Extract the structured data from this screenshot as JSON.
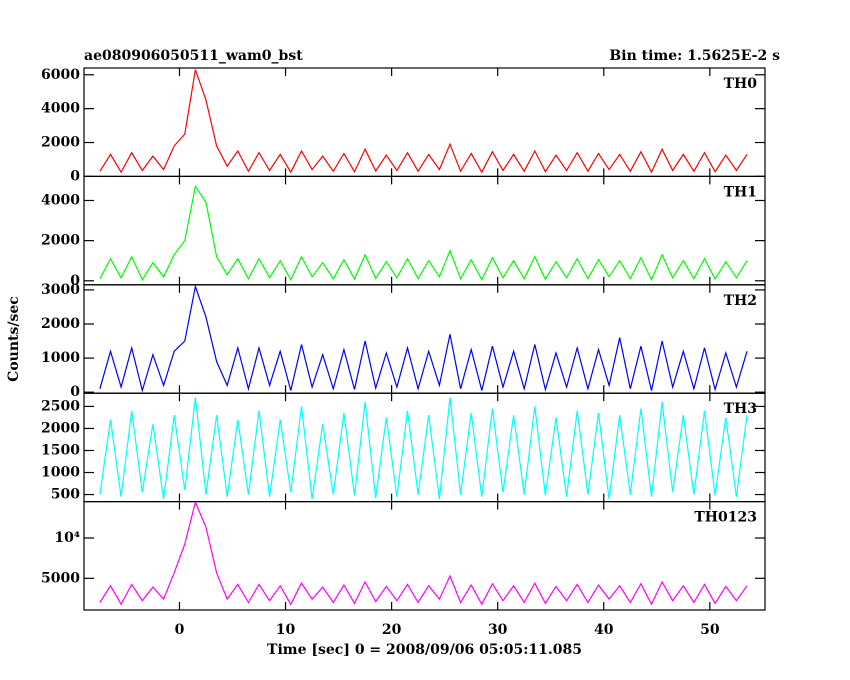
{
  "chart_data": [
    {
      "type": "line",
      "title": "ae080906050511_wam0_bst",
      "subtitle": "Bin time: 1.5625E-2 s",
      "name": "TH0",
      "color": "#ff0000",
      "x": [
        -7.5,
        -6.5,
        -5.5,
        -4.5,
        -3.5,
        -2.5,
        -1.5,
        -0.5,
        0.5,
        1.5,
        2.5,
        3.5,
        4.5,
        5.5,
        6.5,
        7.5,
        8.5,
        9.5,
        10.5,
        11.5,
        12.5,
        13.5,
        14.5,
        15.5,
        16.5,
        17.5,
        18.5,
        19.5,
        20.5,
        21.5,
        22.5,
        23.5,
        24.5,
        25.5,
        26.5,
        27.5,
        28.5,
        29.5,
        30.5,
        31.5,
        32.5,
        33.5,
        34.5,
        35.5,
        36.5,
        37.5,
        38.5,
        39.5,
        40.5,
        41.5,
        42.5,
        43.5,
        44.5,
        45.5,
        46.5,
        47.5,
        48.5,
        49.5,
        50.5,
        51.5,
        52.5,
        53.5
      ],
      "values": [
        300,
        1300,
        250,
        1400,
        350,
        1200,
        400,
        1800,
        2500,
        6300,
        4500,
        1800,
        600,
        1500,
        300,
        1400,
        350,
        1300,
        250,
        1500,
        400,
        1200,
        300,
        1350,
        280,
        1600,
        320,
        1250,
        350,
        1400,
        300,
        1300,
        400,
        1900,
        300,
        1350,
        250,
        1450,
        350,
        1300,
        300,
        1500,
        280,
        1250,
        350,
        1400,
        300,
        1350,
        400,
        1300,
        300,
        1450,
        250,
        1600,
        350,
        1300,
        300,
        1400,
        280,
        1250,
        350,
        1300
      ],
      "xlim": [
        -9,
        55.2
      ],
      "ylim": [
        0,
        6400
      ],
      "yticks": [
        0,
        2000,
        4000,
        6000
      ]
    },
    {
      "type": "line",
      "name": "TH1",
      "color": "#00ff00",
      "x": [
        -7.5,
        -6.5,
        -5.5,
        -4.5,
        -3.5,
        -2.5,
        -1.5,
        -0.5,
        0.5,
        1.5,
        2.5,
        3.5,
        4.5,
        5.5,
        6.5,
        7.5,
        8.5,
        9.5,
        10.5,
        11.5,
        12.5,
        13.5,
        14.5,
        15.5,
        16.5,
        17.5,
        18.5,
        19.5,
        20.5,
        21.5,
        22.5,
        23.5,
        24.5,
        25.5,
        26.5,
        27.5,
        28.5,
        29.5,
        30.5,
        31.5,
        32.5,
        33.5,
        34.5,
        35.5,
        36.5,
        37.5,
        38.5,
        39.5,
        40.5,
        41.5,
        42.5,
        43.5,
        44.5,
        45.5,
        46.5,
        47.5,
        48.5,
        49.5,
        50.5,
        51.5,
        52.5,
        53.5
      ],
      "values": [
        100,
        1100,
        150,
        1200,
        50,
        900,
        200,
        1300,
        2000,
        4700,
        3900,
        1200,
        300,
        1100,
        100,
        1100,
        150,
        1000,
        50,
        1200,
        200,
        900,
        100,
        1050,
        80,
        1300,
        120,
        950,
        150,
        1100,
        100,
        1000,
        200,
        1500,
        100,
        1050,
        50,
        1150,
        150,
        1000,
        100,
        1200,
        80,
        950,
        150,
        1100,
        100,
        1050,
        200,
        1000,
        100,
        1150,
        50,
        1300,
        150,
        1000,
        100,
        1100,
        80,
        950,
        150,
        1000
      ],
      "xlim": [
        -9,
        55.2
      ],
      "ylim": [
        -200,
        5200
      ],
      "yticks": [
        0,
        2000,
        4000
      ]
    },
    {
      "type": "line",
      "name": "TH2",
      "color": "#0000ff",
      "ylabel": "Counts/sec",
      "x": [
        -7.5,
        -6.5,
        -5.5,
        -4.5,
        -3.5,
        -2.5,
        -1.5,
        -0.5,
        0.5,
        1.5,
        2.5,
        3.5,
        4.5,
        5.5,
        6.5,
        7.5,
        8.5,
        9.5,
        10.5,
        11.5,
        12.5,
        13.5,
        14.5,
        15.5,
        16.5,
        17.5,
        18.5,
        19.5,
        20.5,
        21.5,
        22.5,
        23.5,
        24.5,
        25.5,
        26.5,
        27.5,
        28.5,
        29.5,
        30.5,
        31.5,
        32.5,
        33.5,
        34.5,
        35.5,
        36.5,
        37.5,
        38.5,
        39.5,
        40.5,
        41.5,
        42.5,
        43.5,
        44.5,
        45.5,
        46.5,
        47.5,
        48.5,
        49.5,
        50.5,
        51.5,
        52.5,
        53.5
      ],
      "values": [
        100,
        1200,
        150,
        1300,
        50,
        1100,
        200,
        1200,
        1500,
        3100,
        2200,
        900,
        200,
        1300,
        100,
        1300,
        200,
        1200,
        50,
        1400,
        150,
        1100,
        100,
        1250,
        80,
        1500,
        120,
        1150,
        150,
        1300,
        100,
        1200,
        200,
        1700,
        100,
        1250,
        50,
        1350,
        150,
        1200,
        100,
        1400,
        80,
        1150,
        150,
        1300,
        100,
        1250,
        200,
        1600,
        100,
        1350,
        50,
        1500,
        150,
        1200,
        100,
        1300,
        80,
        1150,
        150,
        1200
      ],
      "xlim": [
        -9,
        55.2
      ],
      "ylim": [
        -30,
        3150
      ],
      "yticks": [
        0,
        1000,
        2000,
        3000
      ]
    },
    {
      "type": "line",
      "name": "TH3",
      "color": "#00ffff",
      "x": [
        -7.5,
        -6.5,
        -5.5,
        -4.5,
        -3.5,
        -2.5,
        -1.5,
        -0.5,
        0.5,
        1.5,
        2.5,
        3.5,
        4.5,
        5.5,
        6.5,
        7.5,
        8.5,
        9.5,
        10.5,
        11.5,
        12.5,
        13.5,
        14.5,
        15.5,
        16.5,
        17.5,
        18.5,
        19.5,
        20.5,
        21.5,
        22.5,
        23.5,
        24.5,
        25.5,
        26.5,
        27.5,
        28.5,
        29.5,
        30.5,
        31.5,
        32.5,
        33.5,
        34.5,
        35.5,
        36.5,
        37.5,
        38.5,
        39.5,
        40.5,
        41.5,
        42.5,
        43.5,
        44.5,
        45.5,
        46.5,
        47.5,
        48.5,
        49.5,
        50.5,
        51.5,
        52.5,
        53.5
      ],
      "values": [
        500,
        2200,
        450,
        2400,
        550,
        2100,
        400,
        2300,
        600,
        2700,
        500,
        2300,
        450,
        2200,
        500,
        2400,
        450,
        2200,
        550,
        2500,
        400,
        2100,
        500,
        2350,
        480,
        2600,
        420,
        2250,
        450,
        2400,
        500,
        2300,
        400,
        2700,
        500,
        2350,
        450,
        2450,
        550,
        2300,
        500,
        2500,
        480,
        2250,
        450,
        2400,
        500,
        2350,
        400,
        2300,
        500,
        2450,
        450,
        2600,
        550,
        2300,
        500,
        2400,
        480,
        2250,
        450,
        2300
      ],
      "xlim": [
        -9,
        55.2
      ],
      "ylim": [
        340,
        2800
      ],
      "yticks": [
        500,
        1000,
        1500,
        2000,
        2500
      ]
    },
    {
      "type": "line",
      "name": "TH0123",
      "color": "#ff00ff",
      "log_scale": true,
      "xlabel": "Time [sec] 0 = 2008/09/06 05:05:11.085",
      "x": [
        -7.5,
        -6.5,
        -5.5,
        -4.5,
        -3.5,
        -2.5,
        -1.5,
        -0.5,
        0.5,
        1.5,
        2.5,
        3.5,
        4.5,
        5.5,
        6.5,
        7.5,
        8.5,
        9.5,
        10.5,
        11.5,
        12.5,
        13.5,
        14.5,
        15.5,
        16.5,
        17.5,
        18.5,
        19.5,
        20.5,
        21.5,
        22.5,
        23.5,
        24.5,
        25.5,
        26.5,
        27.5,
        28.5,
        29.5,
        30.5,
        31.5,
        32.5,
        33.5,
        34.5,
        35.5,
        36.5,
        37.5,
        38.5,
        39.5,
        40.5,
        41.5,
        42.5,
        43.5,
        44.5,
        45.5,
        46.5,
        47.5,
        48.5,
        49.5,
        50.5,
        51.5,
        52.5,
        53.5
      ],
      "values": [
        3300,
        4400,
        3200,
        4500,
        3400,
        4300,
        3500,
        5500,
        9000,
        18500,
        12000,
        5500,
        3500,
        4500,
        3300,
        4500,
        3400,
        4400,
        3200,
        4600,
        3500,
        4300,
        3300,
        4450,
        3250,
        4700,
        3350,
        4350,
        3400,
        4500,
        3300,
        4400,
        3500,
        5200,
        3300,
        4450,
        3200,
        4550,
        3400,
        4400,
        3300,
        4600,
        3250,
        4350,
        3400,
        4500,
        3300,
        4450,
        3500,
        4400,
        3300,
        4550,
        3200,
        4700,
        3400,
        4400,
        3300,
        4500,
        3250,
        4350,
        3400,
        4400
      ],
      "xlim": [
        -9,
        55.2
      ],
      "xticks": [
        0,
        10,
        20,
        30,
        40,
        50
      ],
      "ylim": [
        2900,
        18700
      ],
      "yticks": [
        5000,
        {
          "value": 10000,
          "label": "10⁴"
        }
      ]
    }
  ]
}
